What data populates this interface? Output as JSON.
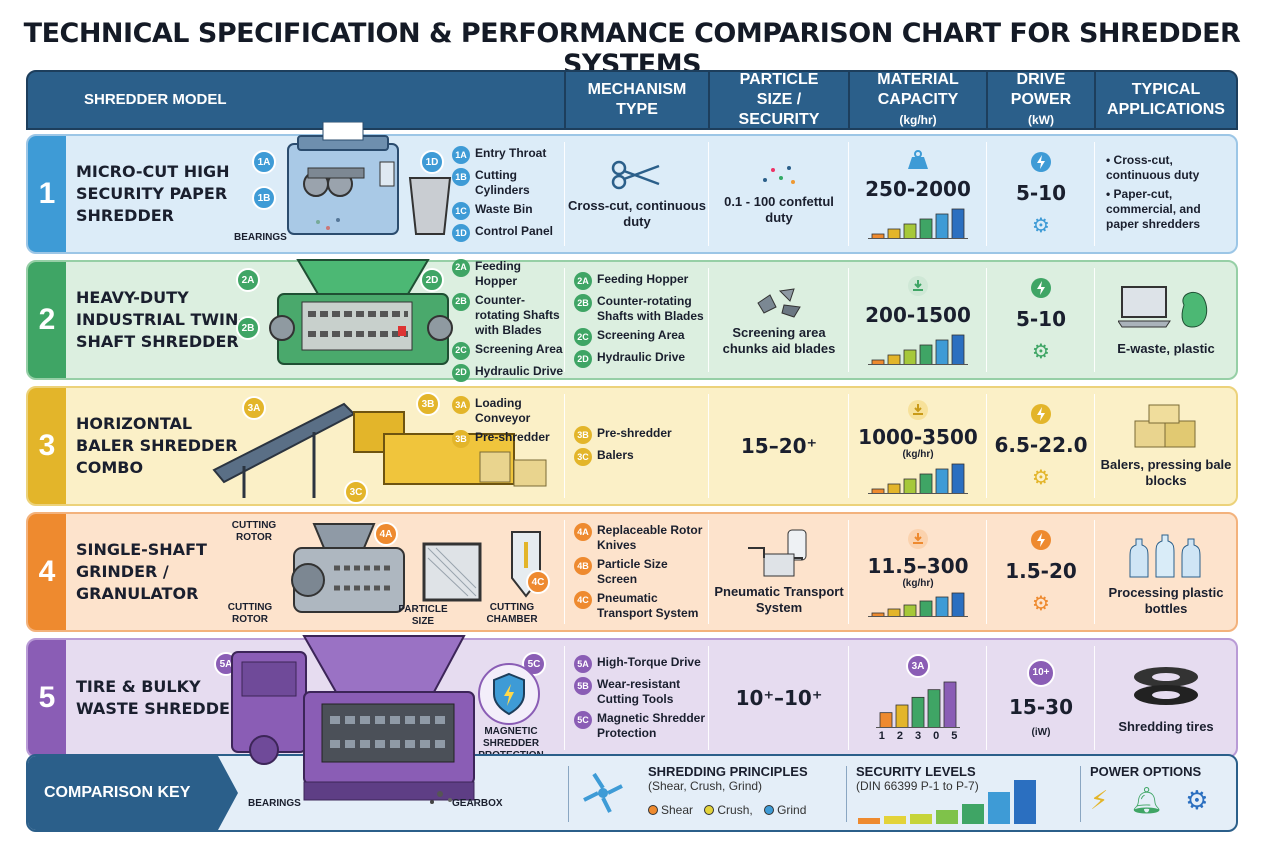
{
  "title": "TECHNICAL SPECIFICATION & PERFORMANCE COMPARISON CHART FOR SHREDDER SYSTEMS",
  "header": {
    "model": "SHREDDER MODEL",
    "mechanism": "MECHANISM TYPE",
    "particle": "PARTICLE SIZE / SECURITY",
    "capacity": "MATERIAL CAPACITY",
    "capacity_unit": "(kg/hr)",
    "power": "DRIVE POWER",
    "power_unit": "(kW)",
    "applications": "TYPICAL APPLICATIONS"
  },
  "rows": [
    {
      "num": "1",
      "name": "MICRO-CUT HIGH SECURITY PAPER SHREDDER",
      "callouts": [
        {
          "id": "1A",
          "label": "Entry Throat"
        },
        {
          "id": "1B",
          "label": "Cutting Cylinders"
        },
        {
          "id": "1C",
          "label": "Waste Bin"
        },
        {
          "id": "1D",
          "label": "Control Panel"
        }
      ],
      "diagram_labels": [
        "BEARINGS"
      ],
      "mechanism": "Cross-cut, continuous duty",
      "particle": "0.1 - 100 confettul duty",
      "capacity": "250-2000",
      "capacity_unit": "",
      "bars": [
        1,
        2,
        3,
        4,
        5,
        6
      ],
      "power": "5-10",
      "applications": [
        "Cross-cut, continuous duty",
        "Paper-cut, commercial, and paper shredders"
      ]
    },
    {
      "num": "2",
      "name": "HEAVY-DUTY INDUSTRIAL TWIN-SHAFT SHREDDER",
      "callouts": [
        {
          "id": "2A",
          "label": "Feeding Hopper"
        },
        {
          "id": "2B",
          "label": "Counter-rotating Shafts with Blades"
        },
        {
          "id": "2C",
          "label": "Screening Area"
        },
        {
          "id": "2D",
          "label": "Hydraulic Drive"
        }
      ],
      "mechanism_list": [
        {
          "id": "2A",
          "label": "Feeding Hopper"
        },
        {
          "id": "2B",
          "label": "Counter-rotating Shafts with Blades"
        },
        {
          "id": "2C",
          "label": "Screening Area"
        },
        {
          "id": "2D",
          "label": "Hydraulic Drive"
        }
      ],
      "particle": "Screening area chunks aid blades",
      "capacity": "200-1500",
      "capacity_unit": "",
      "bars": [
        1,
        2,
        3,
        4,
        5,
        6
      ],
      "power": "5-10",
      "applications": [
        "E-waste, plastic"
      ]
    },
    {
      "num": "3",
      "name": "HORIZONTAL BALER SHREDDER COMBO",
      "callouts": [
        {
          "id": "3A",
          "label": "Loading Conveyor"
        },
        {
          "id": "3B",
          "label": "Pre-shredder"
        }
      ],
      "diagram_badges": [
        "3A",
        "3B",
        "3C"
      ],
      "mechanism_list": [
        {
          "id": "3B",
          "label": "Pre-shredder"
        },
        {
          "id": "3C",
          "label": "Balers"
        }
      ],
      "particle": "15–20⁺",
      "capacity": "1000-3500",
      "capacity_unit": "(kg/hr)",
      "bars": [
        1,
        2,
        3,
        4,
        5,
        6
      ],
      "power": "6.5-22.0",
      "applications": [
        "Balers, pressing bale blocks"
      ]
    },
    {
      "num": "4",
      "name": "SINGLE-SHAFT GRINDER / GRANULATOR",
      "diagram_labels": [
        "CUTTING ROTOR",
        "CUTTING ROTOR",
        "PARTICLE SIZE",
        "CUTTING CHAMBER"
      ],
      "diagram_badges": [
        "4A",
        "4C"
      ],
      "mechanism_list": [
        {
          "id": "4A",
          "label": "Replaceable Rotor Knives"
        },
        {
          "id": "4B",
          "label": "Particle Size Screen"
        },
        {
          "id": "4C",
          "label": "Pneumatic Transport System"
        }
      ],
      "particle": "Pneumatic Transport System",
      "capacity": "11.5–300",
      "capacity_unit": "(kg/hr)",
      "bars": [
        1,
        2,
        3,
        4,
        5,
        6
      ],
      "power": "1.5-20",
      "applications": [
        "Processing plastic bottles"
      ]
    },
    {
      "num": "5",
      "name": "TIRE & BULKY WASTE SHREDDER",
      "diagram_labels": [
        "MAGNETIC SHREDDER PROTECTION",
        "BEARINGS",
        "GEARBOX"
      ],
      "diagram_badges": [
        "5A",
        "5C"
      ],
      "mechanism_list": [
        {
          "id": "5A",
          "label": "High-Torque Drive"
        },
        {
          "id": "5B",
          "label": "Wear-resistant Cutting Tools"
        },
        {
          "id": "5C",
          "label": "Magnetic Shredder Protection"
        }
      ],
      "particle": "10⁺–10⁺",
      "capacity_badge": "3A",
      "bars": [
        2,
        3,
        4,
        5,
        6
      ],
      "bar_labels": [
        "1",
        "2",
        "3",
        "0",
        "5"
      ],
      "power_badge": "10+",
      "power": "15-30",
      "power_unit": "(iW)",
      "applications": [
        "Shredding tires"
      ]
    }
  ],
  "key": {
    "label": "COMPARISON KEY",
    "principles_title": "SHREDDING PRINCIPLES",
    "principles_sub": "(Shear, Crush, Grind)",
    "principles_items": [
      "Shear",
      "Crush,",
      "Grind"
    ],
    "security_title": "SECURITY LEVELS",
    "security_sub": "(DIN 66399 P-1 to P-7)",
    "power_title": "POWER OPTIONS"
  },
  "colors": {
    "header": "#2b5f8a",
    "row1": "#dcecf8",
    "row1_accent": "#3e9bd6",
    "row2": "#dcefe0",
    "row2_accent": "#3fa565",
    "row3": "#fbf0c7",
    "row3_accent": "#e3b52a",
    "row4": "#fde3cc",
    "row4_accent": "#ee8a2f",
    "row5": "#e6dcf0",
    "row5_accent": "#8a5db5"
  }
}
